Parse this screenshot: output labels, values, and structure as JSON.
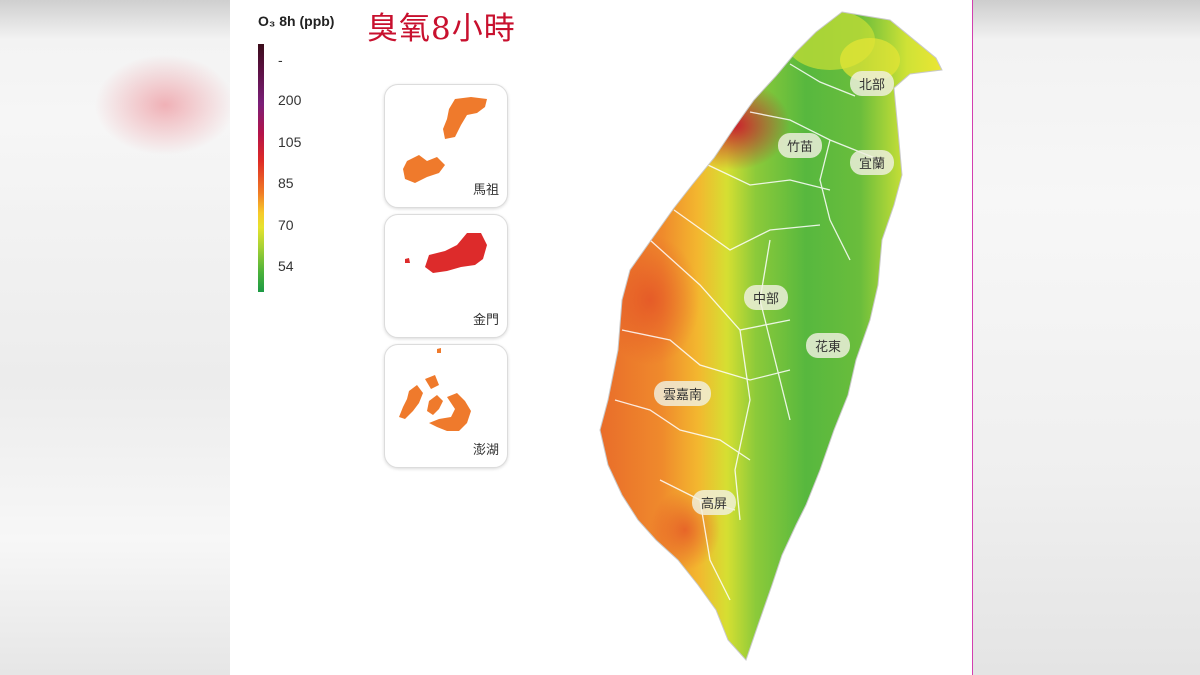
{
  "legend": {
    "title": "O₃ 8h (ppb)",
    "ticks": [
      "-",
      "200",
      "105",
      "85",
      "70",
      "54"
    ],
    "colors": {
      "high": "#3a0d1a",
      "very_unhealthy": "#7a1f78",
      "unhealthy": "#de2a25",
      "sensitive": "#f07c25",
      "moderate": "#f7c92a",
      "good": "#1c9a45"
    }
  },
  "title": "臭氧8小時",
  "insets": [
    {
      "label": "馬祖",
      "color": "#ef7a2c"
    },
    {
      "label": "金門",
      "color": "#dd2b2b"
    },
    {
      "label": "澎湖",
      "color": "#ef7a2c"
    }
  ],
  "regions": {
    "north": "北部",
    "zhumiao": "竹苗",
    "yilan": "宜蘭",
    "central": "中部",
    "huadong": "花東",
    "yunjianan": "雲嘉南",
    "gaoping": "高屏"
  }
}
